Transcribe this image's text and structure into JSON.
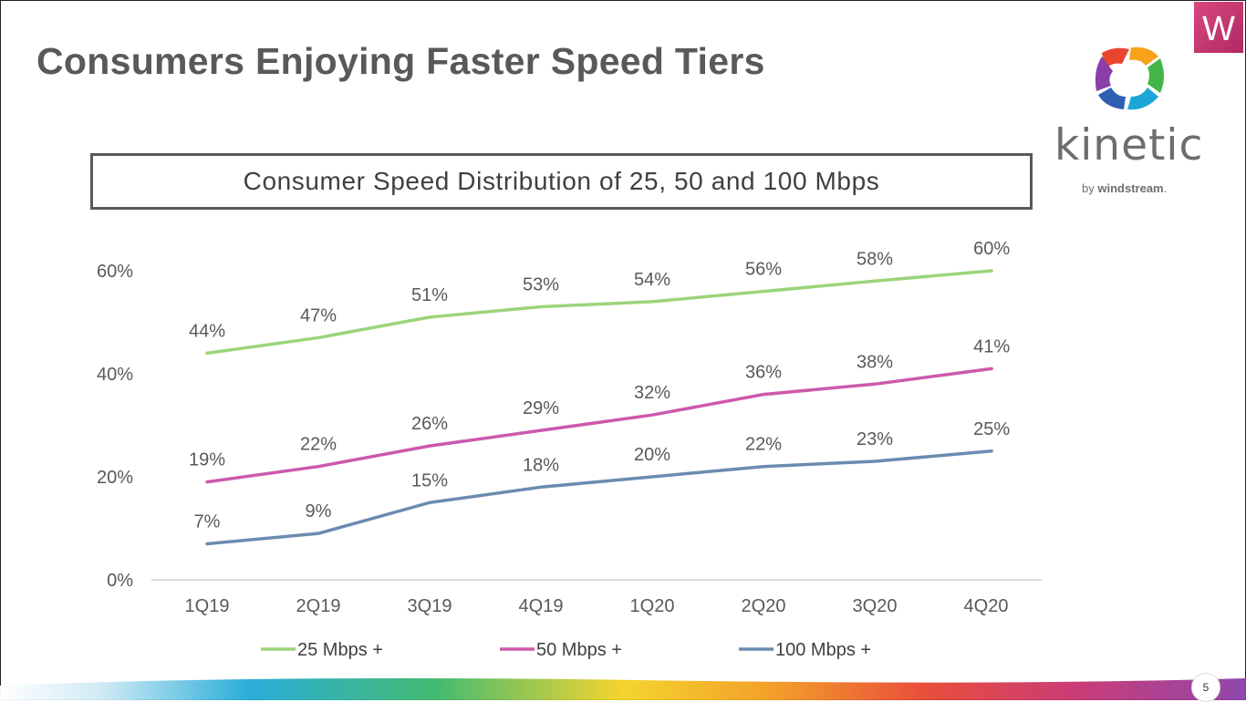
{
  "slide": {
    "title": "Consumers Enjoying Faster Speed Tiers",
    "page_number": "5"
  },
  "brand": {
    "badge_letter": "W",
    "wordmark": "kinetic",
    "tagline_prefix": "by",
    "tagline_brand": "windstream",
    "tagline_suffix": ".",
    "colors": {
      "badge": "#c8326e",
      "wordmark": "#6d6d6d"
    }
  },
  "chart_data": {
    "type": "line",
    "title": "Consumer Speed Distribution of 25, 50 and 100 Mbps",
    "categories": [
      "1Q19",
      "2Q19",
      "3Q19",
      "4Q19",
      "1Q20",
      "2Q20",
      "3Q20",
      "4Q20"
    ],
    "series": [
      {
        "name": "25 Mbps +",
        "color": "#9bd47a",
        "values": [
          44,
          47,
          51,
          53,
          54,
          56,
          58,
          60
        ],
        "labels": [
          "44%",
          "47%",
          "51%",
          "53%",
          "54%",
          "56%",
          "58%",
          "60%"
        ]
      },
      {
        "name": "50 Mbps +",
        "color": "#cc59ac",
        "values": [
          19,
          22,
          26,
          29,
          32,
          36,
          38,
          41
        ],
        "labels": [
          "19%",
          "22%",
          "26%",
          "29%",
          "32%",
          "36%",
          "38%",
          "41%"
        ]
      },
      {
        "name": "100 Mbps +",
        "color": "#6b8bb0",
        "values": [
          7,
          9,
          15,
          18,
          20,
          22,
          23,
          25
        ],
        "labels": [
          "7%",
          "9%",
          "15%",
          "18%",
          "20%",
          "22%",
          "23%",
          "25%"
        ]
      }
    ],
    "yticks": [
      "0%",
      "20%",
      "40%",
      "60%"
    ],
    "ytick_values": [
      0,
      20,
      40,
      60
    ],
    "ylim": [
      0,
      60
    ],
    "xlabel": "",
    "ylabel": "",
    "grid": false,
    "legend": "bottom"
  }
}
